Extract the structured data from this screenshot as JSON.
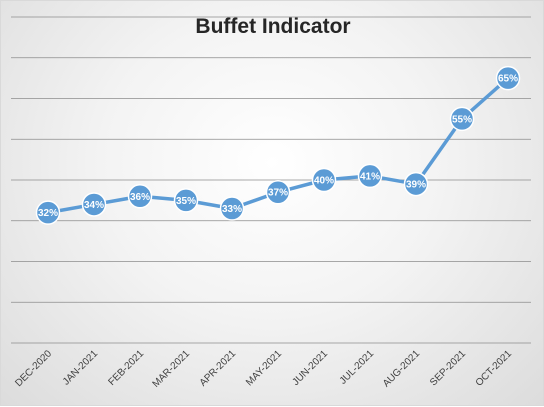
{
  "chart_data": {
    "type": "line",
    "title": "Buffet Indicator",
    "categories": [
      "DEC-2020",
      "JAN-2021",
      "FEB-2021",
      "MAR-2021",
      "APR-2021",
      "MAY-2021",
      "JUN-2021",
      "JUL-2021",
      "AUG-2021",
      "SEP-2021",
      "OCT-2021"
    ],
    "series": [
      {
        "values": [
          32,
          34,
          36,
          35,
          33,
          37,
          40,
          41,
          39,
          55,
          65
        ],
        "data_labels": [
          "32%",
          "34%",
          "36%",
          "35%",
          "33%",
          "37%",
          "40%",
          "41%",
          "39%",
          "55%",
          "65%"
        ]
      }
    ],
    "ylim": [
      0,
      80
    ],
    "y_grid_step": 10,
    "grid": true,
    "y_tick_labels_shown": false,
    "legend": "none",
    "colors": {
      "series": "#5b9bd5",
      "marker_border": "#ffffff",
      "gridline": "#8c8c8c",
      "title": "#262626"
    }
  }
}
